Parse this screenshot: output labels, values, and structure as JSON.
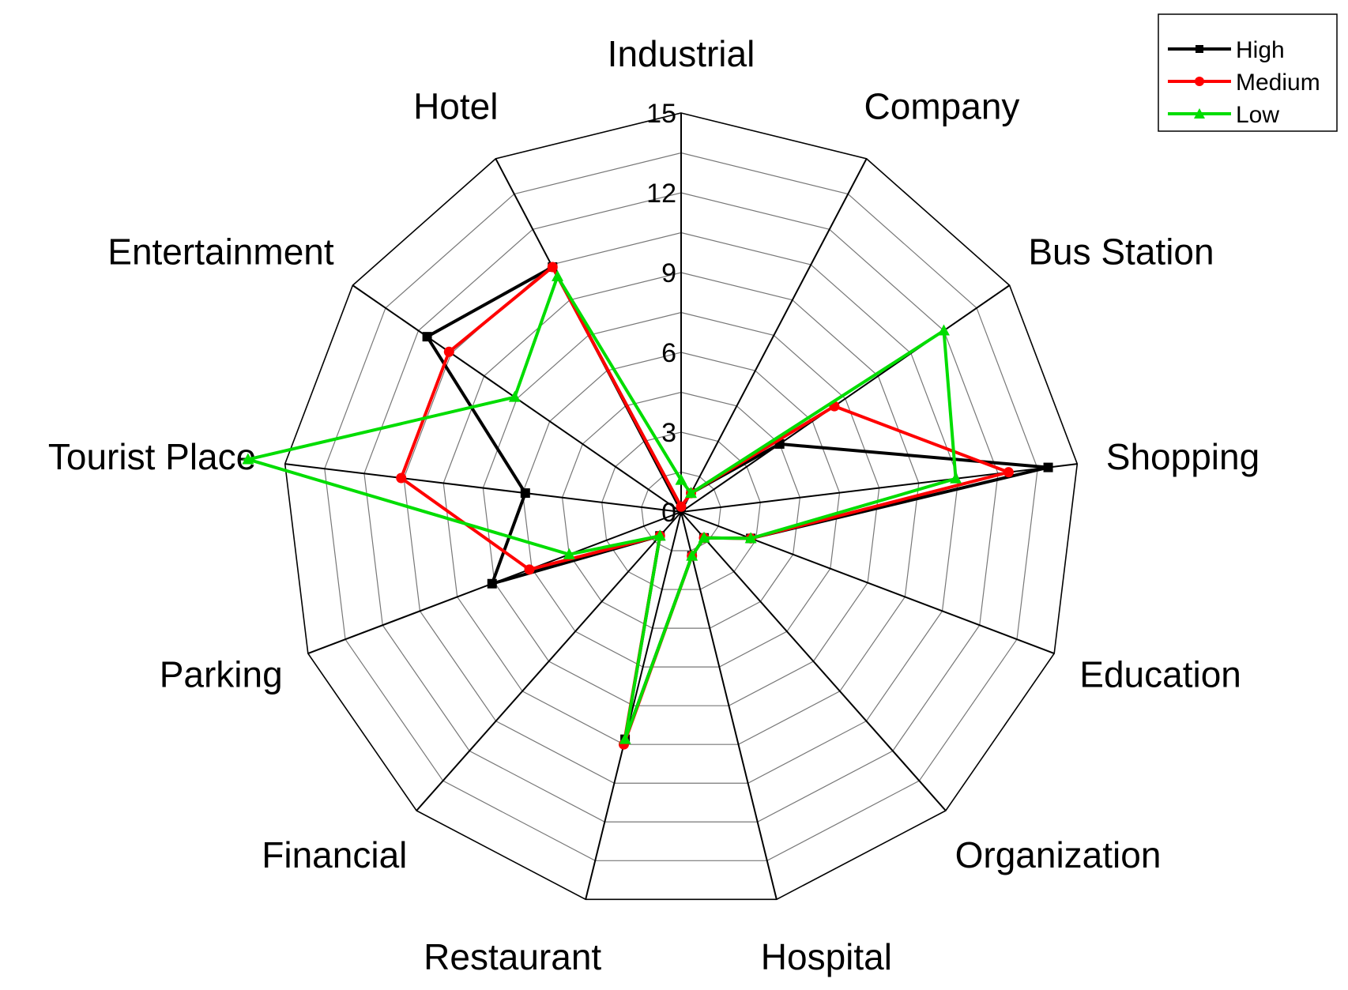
{
  "chart_data": {
    "type": "radar",
    "categories": [
      "Industrial",
      "Company",
      "Bus Station",
      "Shopping",
      "Education",
      "Organization",
      "Hospital",
      "Restaurant",
      "Financial",
      "Parking",
      "Tourist Place",
      "Entertainment",
      "Hotel"
    ],
    "rlim": [
      0,
      15
    ],
    "rticks": [
      0,
      3,
      6,
      9,
      12,
      15
    ],
    "grid": true,
    "legend_position": "top-right",
    "series": [
      {
        "name": "High",
        "color": "#000000",
        "marker": "square",
        "values": [
          0.2,
          0.8,
          4.5,
          13.9,
          2.8,
          1.3,
          1.7,
          8.8,
          1.2,
          7.6,
          5.9,
          11.6,
          10.4
        ]
      },
      {
        "name": "Medium",
        "color": "#ff0000",
        "marker": "circle",
        "values": [
          0.2,
          0.8,
          7.0,
          12.4,
          2.8,
          1.3,
          1.7,
          9.0,
          1.2,
          6.1,
          10.6,
          10.6,
          10.4
        ]
      },
      {
        "name": "Low",
        "color": "#00dd00",
        "marker": "triangle",
        "values": [
          1.2,
          0.8,
          12.0,
          10.4,
          2.8,
          1.3,
          1.7,
          8.8,
          1.2,
          4.5,
          16.4,
          7.6,
          10.0
        ]
      }
    ]
  }
}
